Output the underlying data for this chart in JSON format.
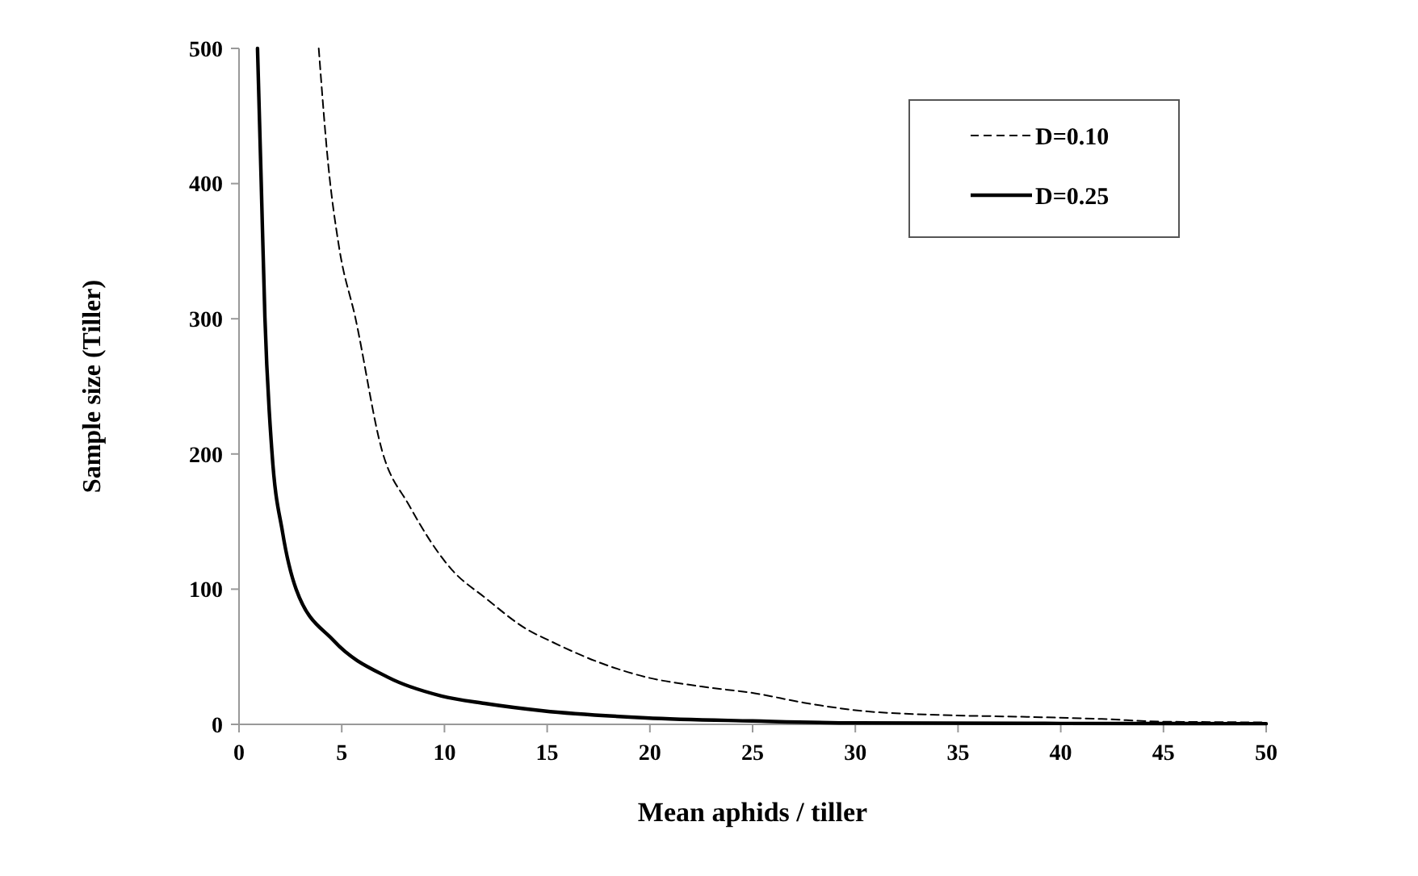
{
  "chart_data": {
    "type": "line",
    "xlabel": "Mean aphids / tiller",
    "ylabel": "Sample size (Tiller)",
    "xlim": [
      0,
      50
    ],
    "xticks": [
      0,
      5,
      10,
      15,
      20,
      25,
      30,
      35,
      40,
      45,
      50
    ],
    "ylim": [
      0,
      500
    ],
    "yticks": [
      0,
      100,
      200,
      300,
      400,
      500
    ],
    "grid": false,
    "legend": "top right",
    "marker": "none",
    "series": [
      {
        "name": "D=0.10",
        "color": "#000000",
        "line_style": "dashed",
        "x": [
          3.88,
          4.35,
          4.87,
          5.66,
          6.97,
          8.28,
          10.38,
          11.95,
          14.05,
          15.1,
          17.5,
          19.8,
          22.5,
          25.1,
          27.5,
          30.3,
          34,
          38.1,
          42,
          45,
          50
        ],
        "values": [
          500,
          413,
          353,
          301,
          202,
          162,
          114,
          94,
          70,
          62,
          46,
          35,
          28,
          23,
          16,
          10,
          7,
          5.6,
          4,
          2,
          1.5
        ]
      },
      {
        "name": "D=0.25",
        "color": "#000000",
        "line_style": "solid",
        "x": [
          0.9,
          1.08,
          1.26,
          1.6,
          2.12,
          2.78,
          4.6,
          7.23,
          9.85,
          11.95,
          14.8,
          19.8,
          25,
          30,
          40,
          50
        ],
        "values": [
          500,
          401,
          301,
          202,
          142,
          100,
          62,
          35,
          21,
          15.5,
          10,
          4.8,
          2.5,
          1,
          0.7,
          0.5
        ]
      }
    ]
  }
}
